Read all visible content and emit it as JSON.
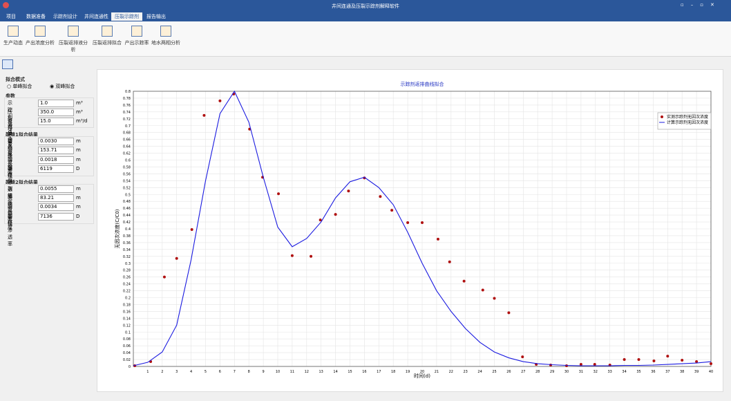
{
  "window": {
    "title": "井间连通及压裂示踪剂解释软件",
    "tabs": [
      "项目",
      "数据准备",
      "示踪剂设计",
      "井间连通性",
      "压裂示踪剂",
      "报告输出"
    ],
    "ribbon": [
      "生产动态",
      "产出浓度分析",
      "压裂返排液分析",
      "压裂返排拟合",
      "产出示踪率",
      "地水两相分析"
    ],
    "panel": {
      "mode_title": "拟合模式",
      "modes": [
        "单峰拟合",
        "双峰拟合"
      ],
      "params_title": "参数",
      "params": [
        [
          "示踪剂总注入量",
          "1.0",
          "m³"
        ],
        [
          "压裂液总注入量",
          "350.0",
          "m³"
        ],
        [
          "返排产量",
          "15.0",
          "m³/d"
        ]
      ],
      "frac1_title": "裂缝1拟合结果",
      "frac1": [
        [
          "裂缝等效半径",
          "0.0030",
          "m"
        ],
        [
          "裂缝长度",
          "153.71",
          "m"
        ],
        [
          "裂缝开度",
          "0.0018",
          "m"
        ],
        [
          "裂缝渗透率",
          "6119",
          "D"
        ]
      ],
      "frac2_title": "裂缝2拟合结果",
      "frac2": [
        [
          "裂缝等效半径",
          "0.0055",
          "m"
        ],
        [
          "裂缝长度",
          "83.21",
          "m"
        ],
        [
          "裂缝开度",
          "0.0034",
          "m"
        ],
        [
          "裂缝渗透率",
          "7136",
          "D"
        ]
      ]
    }
  },
  "chart_data": {
    "type": "scatter",
    "title": "示踪剂返排曲线拟合",
    "x_label": "时间(d)",
    "y_label": "无因次浓度(C/C0)",
    "xlim": [
      0,
      40
    ],
    "ylim": [
      0,
      0.8
    ],
    "grid": true,
    "legend": "upper right",
    "xticks": [
      1,
      2,
      3,
      4,
      5,
      6,
      7,
      8,
      9,
      10,
      11,
      12,
      13,
      14,
      15,
      16,
      17,
      18,
      19,
      20,
      21,
      22,
      23,
      24,
      25,
      26,
      27,
      28,
      29,
      30,
      31,
      32,
      33,
      34,
      35,
      36,
      37,
      38,
      39,
      40
    ],
    "yticks": [
      0,
      0.02,
      0.04,
      0.06,
      0.08,
      0.1,
      0.12,
      0.14,
      0.16,
      0.18,
      0.2,
      0.22,
      0.24,
      0.26,
      0.28,
      0.3,
      0.32,
      0.34,
      0.36,
      0.38,
      0.4,
      0.42,
      0.44,
      0.46,
      0.48,
      0.5,
      0.52,
      0.54,
      0.56,
      0.58,
      0.6,
      0.62,
      0.64,
      0.66,
      0.68,
      0.7,
      0.72,
      0.74,
      0.76,
      0.78,
      0.8
    ],
    "series": [
      {
        "name": "实测示踪剂无因次浓度",
        "type": "scatter",
        "color": "#b01010",
        "x": [
          0.1,
          1.2,
          2.15,
          3.0,
          4.05,
          4.9,
          6.0,
          6.95,
          8.05,
          8.95,
          10.05,
          11.0,
          12.3,
          12.95,
          14.0,
          14.9,
          16.0,
          17.1,
          17.9,
          19.0,
          20.0,
          21.1,
          21.9,
          22.9,
          24.2,
          25.0,
          26.0,
          26.95,
          27.9,
          28.9,
          30.0,
          31.0,
          31.95,
          33.0,
          34.0,
          35.0,
          36.05,
          37.0,
          38.0,
          39.0,
          40.0
        ],
        "values": [
          0.002,
          0.014,
          0.26,
          0.314,
          0.398,
          0.73,
          0.772,
          0.792,
          0.69,
          0.55,
          0.502,
          0.322,
          0.32,
          0.426,
          0.442,
          0.51,
          0.548,
          0.494,
          0.454,
          0.418,
          0.418,
          0.37,
          0.304,
          0.248,
          0.222,
          0.198,
          0.156,
          0.028,
          0.006,
          0.004,
          0.002,
          0.006,
          0.006,
          0.004,
          0.02,
          0.02,
          0.016,
          0.03,
          0.018,
          0.014,
          0.008
        ]
      },
      {
        "name": "计算示踪剂无因次浓度",
        "type": "line",
        "color": "#1a1ae0",
        "x": [
          0,
          1,
          2,
          3,
          4,
          5,
          6,
          7,
          8,
          9,
          10,
          11,
          12,
          13,
          14,
          15,
          16,
          17,
          18,
          19,
          20,
          21,
          22,
          23,
          24,
          25,
          26,
          27,
          28,
          29,
          30,
          31,
          32,
          33,
          34,
          35,
          36,
          37,
          38,
          39,
          40
        ],
        "values": [
          0.002,
          0.012,
          0.042,
          0.12,
          0.31,
          0.54,
          0.735,
          0.8,
          0.71,
          0.55,
          0.405,
          0.348,
          0.372,
          0.42,
          0.49,
          0.537,
          0.55,
          0.52,
          0.47,
          0.39,
          0.3,
          0.22,
          0.16,
          0.11,
          0.07,
          0.042,
          0.025,
          0.014,
          0.008,
          0.005,
          0.003,
          0.002,
          0.002,
          0.002,
          0.003,
          0.003,
          0.004,
          0.006,
          0.008,
          0.01,
          0.014
        ]
      }
    ]
  }
}
